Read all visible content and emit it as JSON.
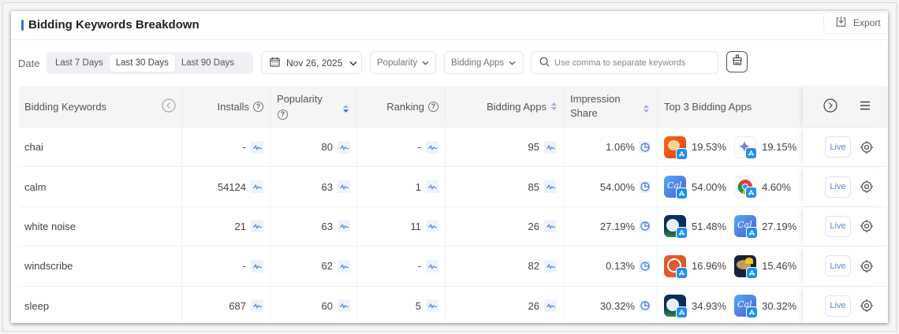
{
  "header": {
    "title": "Bidding Keywords Breakdown",
    "export_label": "Export"
  },
  "toolbar": {
    "date_label": "Date",
    "date_ranges": [
      {
        "label": "Last 7 Days",
        "active": false
      },
      {
        "label": "Last 30 Days",
        "active": true
      },
      {
        "label": "Last 90 Days",
        "active": false
      }
    ],
    "date_value": "Nov 26, 2025",
    "popularity_filter": "Popularity",
    "bidding_apps_filter": "Bidding Apps",
    "search_placeholder": "Use comma to separate keywords"
  },
  "table": {
    "columns": {
      "keyword": "Bidding Keywords",
      "installs": "Installs",
      "popularity": "Popularity",
      "ranking": "Ranking",
      "bidding_apps": "Bidding Apps",
      "impression_share_line1": "Impression",
      "impression_share_line2": "Share",
      "top_apps": "Top 3 Bidding Apps"
    },
    "rows": [
      {
        "keyword": "chai",
        "installs": "-",
        "popularity": "80",
        "ranking": "-",
        "bidding_apps": "95",
        "impression_share": "1.06%",
        "top_apps": [
          {
            "icon": "chai-app-icon",
            "pct": "19.53%"
          },
          {
            "icon": "gemini-app-icon",
            "pct": "19.15%"
          }
        ],
        "live_label": "Live"
      },
      {
        "keyword": "calm",
        "installs": "54124",
        "popularity": "63",
        "ranking": "1",
        "bidding_apps": "85",
        "impression_share": "54.00%",
        "top_apps": [
          {
            "icon": "calm-app-icon",
            "pct": "54.00%"
          },
          {
            "icon": "chrome-app-icon",
            "pct": "4.60%"
          }
        ],
        "live_label": "Live"
      },
      {
        "keyword": "white noise",
        "installs": "21",
        "popularity": "63",
        "ranking": "11",
        "bidding_apps": "26",
        "impression_share": "27.19%",
        "top_apps": [
          {
            "icon": "sleep-moon-app-icon",
            "pct": "51.48%"
          },
          {
            "icon": "calm-app-icon",
            "pct": "27.19%"
          }
        ],
        "live_label": "Live"
      },
      {
        "keyword": "windscribe",
        "installs": "-",
        "popularity": "62",
        "ranking": "-",
        "bidding_apps": "82",
        "impression_share": "0.13%",
        "top_apps": [
          {
            "icon": "duckduckgo-app-icon",
            "pct": "16.96%"
          },
          {
            "icon": "windscribe-app-icon",
            "pct": "15.46%"
          }
        ],
        "live_label": "Live"
      },
      {
        "keyword": "sleep",
        "installs": "687",
        "popularity": "60",
        "ranking": "5",
        "bidding_apps": "26",
        "impression_share": "30.32%",
        "top_apps": [
          {
            "icon": "sleep-moon-app-icon",
            "pct": "34.93%"
          },
          {
            "icon": "calm-app-icon",
            "pct": "30.32%"
          }
        ],
        "live_label": "Live"
      }
    ]
  },
  "colors": {
    "accent": "#3b6fd8",
    "trend_icon": "#4a7fd6",
    "header_bg": "#f5f5f5"
  }
}
